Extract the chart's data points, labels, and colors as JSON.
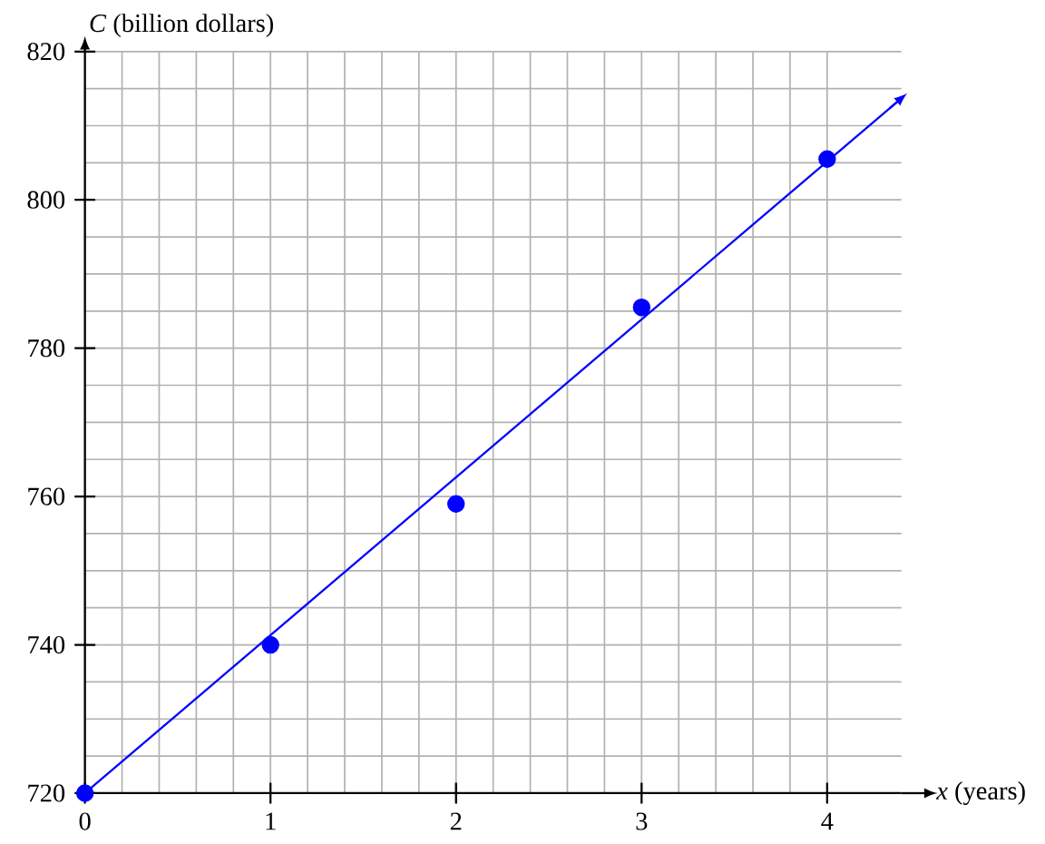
{
  "chart_data": {
    "type": "scatter",
    "xlabel": "*x* (years)",
    "ylabel": "*C* (billion dollars)",
    "xlim": [
      0,
      4.4
    ],
    "ylim": [
      720,
      820
    ],
    "xticks": [
      0,
      1,
      2,
      3,
      4
    ],
    "yticks": [
      720,
      740,
      760,
      780,
      800,
      820
    ],
    "grid": true,
    "series": [
      {
        "color": "#0000ff",
        "marker": "circle",
        "x": [
          0,
          1,
          2,
          3,
          4
        ],
        "values": [
          720,
          740,
          759,
          785.5,
          805.5
        ]
      },
      {
        "type": "line",
        "color": "#0000ff",
        "marker": "none",
        "x": [
          0,
          4.4
        ],
        "values": [
          720,
          813.7
        ]
      }
    ]
  }
}
